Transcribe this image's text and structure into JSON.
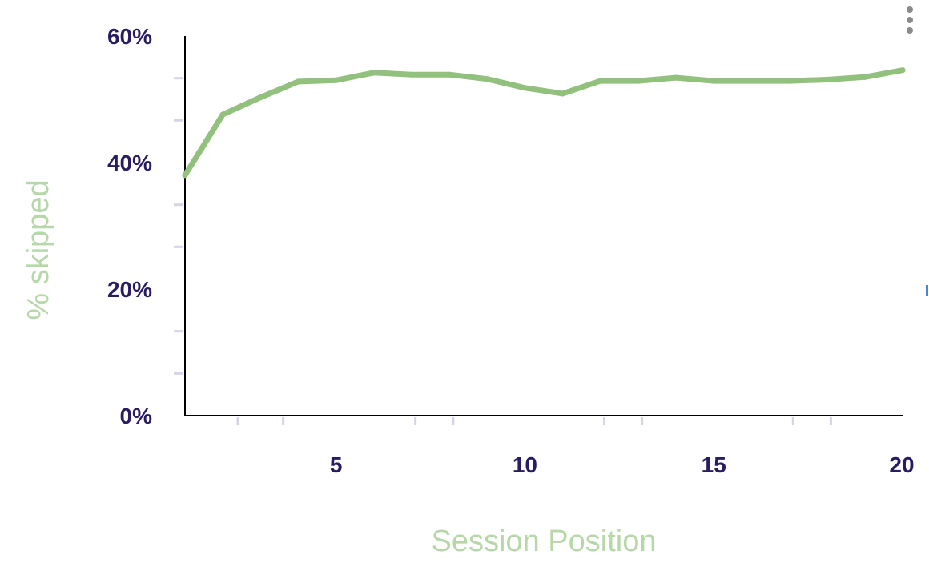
{
  "chart_data": {
    "type": "line",
    "title": "",
    "xlabel": "Session Position",
    "ylabel": "% skipped",
    "xlim": [
      1,
      20
    ],
    "ylim": [
      0,
      60
    ],
    "x_ticks": [
      5,
      10,
      15,
      20
    ],
    "x_tick_labels": [
      "5",
      "10",
      "15",
      "20"
    ],
    "y_ticks": [
      0,
      20,
      40,
      60
    ],
    "y_tick_labels": [
      "0%",
      "20%",
      "40%",
      "60%"
    ],
    "grid": false,
    "legend": "none",
    "series": [
      {
        "x": [
          1,
          2,
          3,
          4,
          5,
          6,
          7,
          8,
          9,
          10,
          11,
          12,
          13,
          14,
          15,
          16,
          17,
          18,
          19,
          20
        ],
        "values": [
          38,
          47.6,
          50.3,
          52.8,
          53.0,
          54.2,
          53.9,
          53.9,
          53.2,
          51.8,
          50.9,
          52.9,
          52.9,
          53.4,
          52.9,
          52.9,
          52.9,
          53.1,
          53.5,
          54.6
        ]
      }
    ],
    "colors": {
      "line": "#92c07d",
      "tick_label": "#2a1c63",
      "axis_title": "#b6d7a8",
      "minor_tick": "#d4d4e8",
      "axis": "#000000"
    }
  },
  "ui": {
    "menu_icon": "more-vertical-icon"
  }
}
